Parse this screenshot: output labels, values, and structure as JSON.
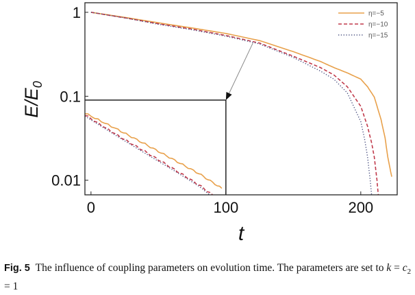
{
  "chart_data": {
    "type": "line",
    "xlabel": "t",
    "ylabel": "E/E0",
    "ylabel_main": "E/E",
    "ylabel_sub": "0",
    "xlim": [
      -4.5,
      227
    ],
    "ylim": [
      0.0067,
      1.3
    ],
    "yscale": "log",
    "grid": false,
    "legend_position": "top-right",
    "xticks": [
      {
        "v": 0,
        "label": "0"
      },
      {
        "v": 100,
        "label": "100"
      },
      {
        "v": 200,
        "label": "200"
      }
    ],
    "yticks": [
      {
        "v": 1,
        "label": "1"
      },
      {
        "v": 0.1,
        "label": "0.1"
      },
      {
        "v": 0.01,
        "label": "0.01"
      }
    ],
    "series": [
      {
        "name": "η=−5",
        "style": "solid",
        "color": "#e8a04a",
        "x": [
          0,
          25,
          50,
          75,
          100,
          125,
          150,
          170,
          180,
          190,
          200,
          205,
          210,
          215,
          218,
          220,
          222,
          223
        ],
        "y": [
          1,
          0.87,
          0.75,
          0.65,
          0.56,
          0.46,
          0.34,
          0.26,
          0.22,
          0.19,
          0.16,
          0.13,
          0.098,
          0.053,
          0.032,
          0.019,
          0.013,
          0.011
        ]
      },
      {
        "name": "η=−10",
        "style": "dashed",
        "color": "#c0394a",
        "x": [
          0,
          25,
          50,
          75,
          100,
          125,
          150,
          170,
          180,
          190,
          200,
          205,
          208,
          210,
          212,
          213
        ],
        "y": [
          1,
          0.86,
          0.73,
          0.63,
          0.53,
          0.43,
          0.3,
          0.22,
          0.18,
          0.13,
          0.076,
          0.044,
          0.028,
          0.019,
          0.01,
          0.0067
        ]
      },
      {
        "name": "η=−15",
        "style": "dotted",
        "color": "#4a5080",
        "x": [
          0,
          25,
          50,
          75,
          100,
          125,
          150,
          170,
          180,
          190,
          200,
          203,
          205,
          207,
          208
        ],
        "y": [
          1,
          0.86,
          0.72,
          0.62,
          0.52,
          0.42,
          0.29,
          0.2,
          0.16,
          0.11,
          0.05,
          0.03,
          0.019,
          0.01,
          0.0067
        ]
      }
    ],
    "inset": {
      "x_range": [
        -4.5,
        100
      ],
      "y_top": 0.09,
      "arrow_from": {
        "x": 120,
        "y": 0.43
      },
      "arrow_to": {
        "x": 100,
        "y": 0.09
      },
      "series": [
        {
          "ref": "η=−5",
          "x": [
            -4.5,
            20,
            40,
            60,
            80,
            97
          ],
          "y": [
            0.063,
            0.04,
            0.027,
            0.018,
            0.012,
            0.008
          ]
        },
        {
          "ref": "η=−10",
          "x": [
            -4.5,
            20,
            40,
            60,
            80,
            90
          ],
          "y": [
            0.06,
            0.034,
            0.022,
            0.014,
            0.0088,
            0.0067
          ]
        },
        {
          "ref": "η=−15",
          "x": [
            -4.5,
            20,
            40,
            60,
            80,
            88
          ],
          "y": [
            0.058,
            0.033,
            0.021,
            0.0135,
            0.0085,
            0.0067
          ]
        }
      ]
    }
  },
  "caption": {
    "label": "Fig. 5",
    "text1": "The influence of coupling parameters on evolution time. The parameters are set to",
    "k": "k",
    "eq1": " = ",
    "c": "c",
    "c_sub": "2",
    "eq2": " = 1"
  }
}
